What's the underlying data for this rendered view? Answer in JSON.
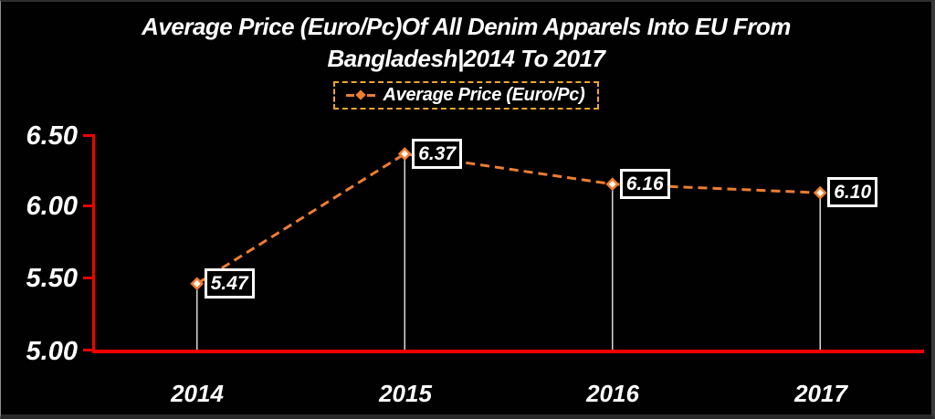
{
  "title": {
    "line1": "Average Price (Euro/Pc)Of All Denim Apparels Into EU From",
    "line2": "Bangladesh|2014 To 2017"
  },
  "legend": {
    "label": "Average Price (Euro/Pc)",
    "border_color": "#EFA728",
    "marker": "dash-diamond-dash"
  },
  "colors": {
    "background": "#010101",
    "line": "#ED7D31",
    "axis": "#F00000",
    "drop_line": "#D8D8D8",
    "text": "#FFFFFF",
    "label_box_border": "#FFFFFF"
  },
  "chart_data": {
    "type": "line",
    "title": "Average Price (Euro/Pc)Of All Denim Apparels Into EU From Bangladesh|2014 To 2017",
    "categories": [
      "2014",
      "2015",
      "2016",
      "2017"
    ],
    "series": [
      {
        "name": "Average Price (Euro/Pc)",
        "values": [
          5.47,
          6.37,
          6.16,
          6.1
        ]
      }
    ],
    "labels": [
      "5.47",
      "6.37",
      "6.16",
      "6.10"
    ],
    "yticks": [
      "6.50",
      "6.00",
      "5.50",
      "5.00"
    ],
    "ylim": [
      5.0,
      6.5
    ],
    "xlabel": "",
    "ylabel": "",
    "grid": false,
    "line_style": "dashed",
    "marker": "diamond",
    "legend_position": "top-center"
  }
}
